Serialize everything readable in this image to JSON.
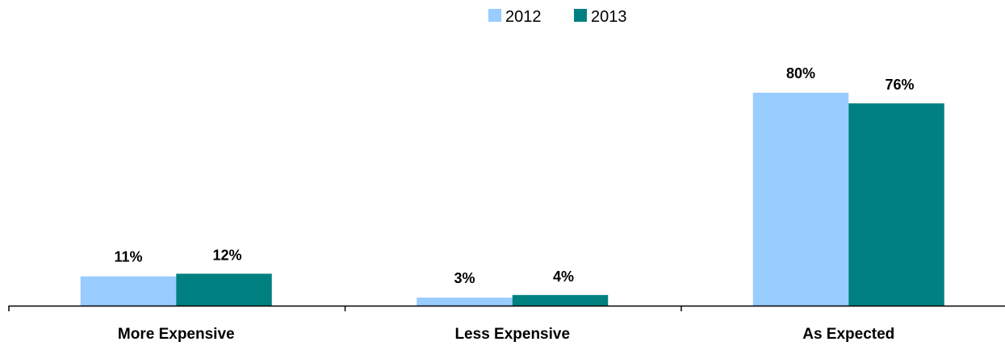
{
  "chart_data": {
    "type": "bar",
    "categories": [
      "More Expensive",
      "Less Expensive",
      "As Expected"
    ],
    "series": [
      {
        "name": "2012",
        "values": [
          11,
          3,
          80
        ],
        "labels": [
          "11%",
          "3%",
          "80%"
        ],
        "color": "#99CCFF"
      },
      {
        "name": "2013",
        "values": [
          12,
          4,
          76
        ],
        "labels": [
          "12%",
          "4%",
          "76%"
        ],
        "color": "#008080"
      }
    ],
    "ylim": [
      0,
      100
    ],
    "grid": false,
    "legend_position": "top-center"
  }
}
